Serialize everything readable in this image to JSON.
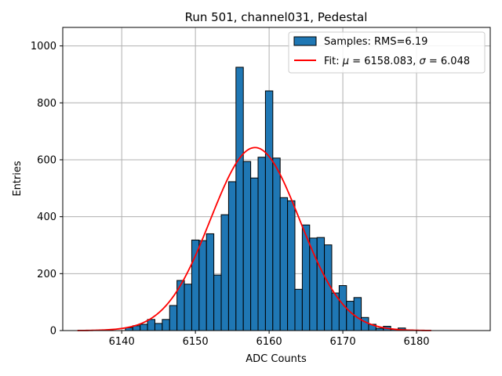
{
  "chart_data": {
    "type": "bar",
    "title": "Run 501, channel031, Pedestal",
    "xlabel": "ADC Counts",
    "ylabel": "Entries",
    "xlim": [
      6132,
      6190
    ],
    "ylim": [
      0,
      1065
    ],
    "xticks": [
      6140,
      6150,
      6160,
      6170,
      6180
    ],
    "yticks": [
      0,
      200,
      400,
      600,
      800,
      1000
    ],
    "grid": true,
    "legend_position": "top-right",
    "bin_width": 1,
    "bins": [
      {
        "x": 6141,
        "y": 10
      },
      {
        "x": 6142,
        "y": 17
      },
      {
        "x": 6143,
        "y": 22
      },
      {
        "x": 6144,
        "y": 39
      },
      {
        "x": 6145,
        "y": 25
      },
      {
        "x": 6146,
        "y": 39
      },
      {
        "x": 6147,
        "y": 88
      },
      {
        "x": 6148,
        "y": 176
      },
      {
        "x": 6149,
        "y": 163
      },
      {
        "x": 6150,
        "y": 318
      },
      {
        "x": 6151,
        "y": 316
      },
      {
        "x": 6152,
        "y": 340
      },
      {
        "x": 6153,
        "y": 195
      },
      {
        "x": 6154,
        "y": 407
      },
      {
        "x": 6155,
        "y": 523
      },
      {
        "x": 6156,
        "y": 925
      },
      {
        "x": 6157,
        "y": 594
      },
      {
        "x": 6158,
        "y": 536
      },
      {
        "x": 6159,
        "y": 609
      },
      {
        "x": 6160,
        "y": 842
      },
      {
        "x": 6161,
        "y": 606
      },
      {
        "x": 6162,
        "y": 467
      },
      {
        "x": 6163,
        "y": 456
      },
      {
        "x": 6164,
        "y": 145
      },
      {
        "x": 6165,
        "y": 371
      },
      {
        "x": 6166,
        "y": 325
      },
      {
        "x": 6167,
        "y": 327
      },
      {
        "x": 6168,
        "y": 301
      },
      {
        "x": 6169,
        "y": 132
      },
      {
        "x": 6170,
        "y": 158
      },
      {
        "x": 6171,
        "y": 103
      },
      {
        "x": 6172,
        "y": 116
      },
      {
        "x": 6173,
        "y": 46
      },
      {
        "x": 6174,
        "y": 22
      },
      {
        "x": 6175,
        "y": 8
      },
      {
        "x": 6176,
        "y": 15
      },
      {
        "x": 6177,
        "y": 4
      },
      {
        "x": 6178,
        "y": 9
      },
      {
        "x": 6179,
        "y": 2
      },
      {
        "x": 6180,
        "y": 1
      }
    ],
    "fit": {
      "mu": 6158.083,
      "sigma": 6.048,
      "amplitude": 643,
      "x_range": [
        6134,
        6182
      ]
    },
    "series": [
      {
        "name": "Samples: RMS=6.19",
        "type": "histogram",
        "color": "#1f77b4",
        "edge_color": "#000000"
      },
      {
        "name": "Fit: μ = 6158.083, σ = 6.048",
        "type": "line",
        "color": "#ff0000"
      }
    ],
    "legend": {
      "samples_label": "Samples: RMS=6.19",
      "fit_prefix": "Fit: ",
      "fit_mu_symbol": "μ",
      "fit_mu_text": " = 6158.083, ",
      "fit_sigma_symbol": "σ",
      "fit_sigma_text": " = 6.048"
    },
    "colors": {
      "bar": "#1f77b4",
      "bar_edge": "#000000",
      "fit": "#ff0000",
      "grid": "#b0b0b0"
    }
  }
}
